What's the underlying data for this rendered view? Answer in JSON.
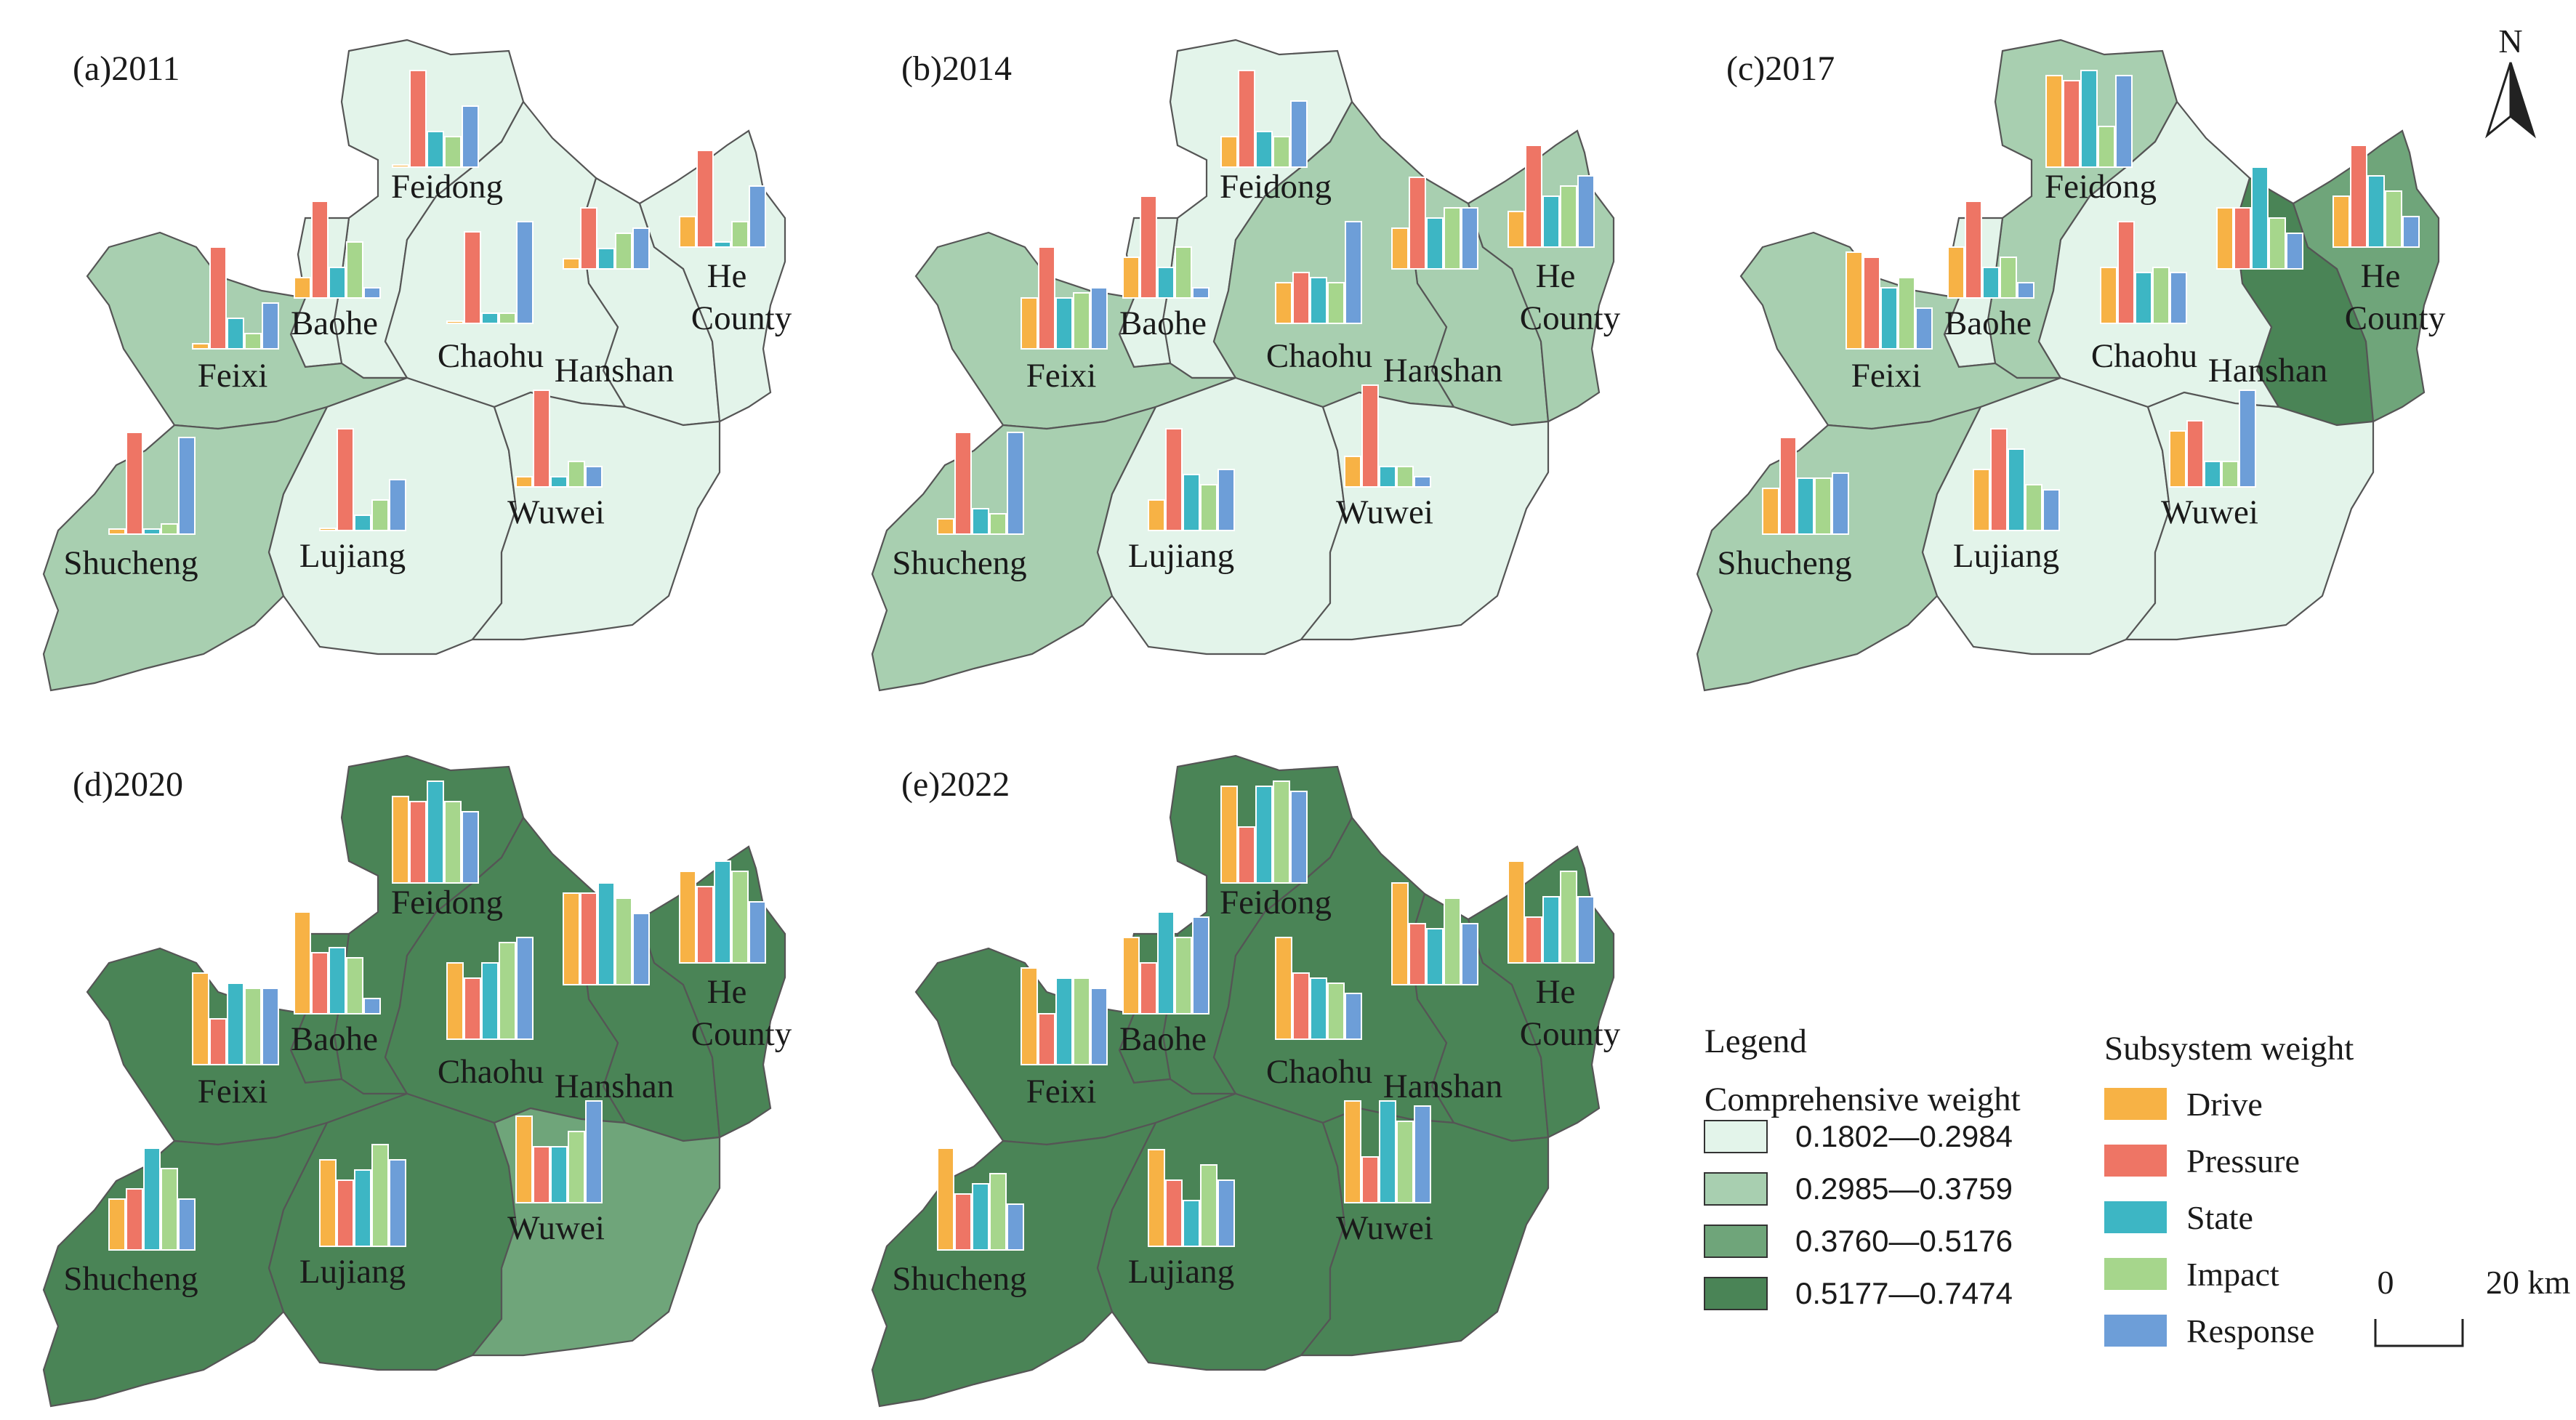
{
  "colors": {
    "classes": [
      "#e3f4ea",
      "#a8cfb0",
      "#6fa57a",
      "#4a8456"
    ],
    "subsystems": [
      "#f7b245",
      "#ee7565",
      "#3db6c4",
      "#a6d68c",
      "#6d9ed8"
    ],
    "border": "#555555"
  },
  "legend": {
    "title": "Legend",
    "comp_title": "Comprehensive weight",
    "classes": [
      "0.1802—0.2984",
      "0.2985—0.3759",
      "0.3760—0.5176",
      "0.5177—0.7474"
    ],
    "sub_title": "Subsystem weight",
    "subsystems": [
      "Drive",
      "Pressure",
      "State",
      "Impact",
      "Response"
    ]
  },
  "north": "N",
  "scale": {
    "zero": "0",
    "distance": "20 km"
  },
  "panels": [
    {
      "title": "(a)2011",
      "counties": [
        {
          "name": "Feidong",
          "cls": 0,
          "bars": [
            0,
            0.95,
            0.35,
            0.3,
            0.6
          ]
        },
        {
          "name": "Baohe",
          "cls": 0,
          "bars": [
            0.2,
            0.95,
            0.3,
            0.55,
            0.1
          ]
        },
        {
          "name": "Hanshan",
          "cls": 0,
          "bars": [
            0.1,
            0.6,
            0.2,
            0.35,
            0.4
          ]
        },
        {
          "name": "He County",
          "cls": 0,
          "bars": [
            0.3,
            0.95,
            0.05,
            0.25,
            0.6
          ]
        },
        {
          "name": "Feixi",
          "cls": 1,
          "bars": [
            0.05,
            1.0,
            0.3,
            0.15,
            0.45
          ]
        },
        {
          "name": "Chaohu",
          "cls": 0,
          "bars": [
            0,
            0.9,
            0.1,
            0.1,
            1.0
          ]
        },
        {
          "name": "Shucheng",
          "cls": 1,
          "bars": [
            0.05,
            1.0,
            0.05,
            0.1,
            0.95
          ]
        },
        {
          "name": "Lujiang",
          "cls": 0,
          "bars": [
            0,
            1.0,
            0.15,
            0.3,
            0.5
          ]
        },
        {
          "name": "Wuwei",
          "cls": 0,
          "bars": [
            0.1,
            0.95,
            0.1,
            0.25,
            0.2
          ]
        }
      ]
    },
    {
      "title": "(b)2014",
      "counties": [
        {
          "name": "Feidong",
          "cls": 0,
          "bars": [
            0.3,
            0.95,
            0.35,
            0.3,
            0.65
          ]
        },
        {
          "name": "Baohe",
          "cls": 0,
          "bars": [
            0.4,
            1.0,
            0.3,
            0.5,
            0.1
          ]
        },
        {
          "name": "Hanshan",
          "cls": 1,
          "bars": [
            0.4,
            0.9,
            0.5,
            0.6,
            0.6
          ]
        },
        {
          "name": "He County",
          "cls": 1,
          "bars": [
            0.35,
            1.0,
            0.5,
            0.6,
            0.7
          ]
        },
        {
          "name": "Feixi",
          "cls": 1,
          "bars": [
            0.5,
            1.0,
            0.5,
            0.55,
            0.6
          ]
        },
        {
          "name": "Chaohu",
          "cls": 1,
          "bars": [
            0.4,
            0.5,
            0.45,
            0.4,
            1.0
          ]
        },
        {
          "name": "Shucheng",
          "cls": 1,
          "bars": [
            0.15,
            1.0,
            0.25,
            0.2,
            1.0
          ]
        },
        {
          "name": "Lujiang",
          "cls": 0,
          "bars": [
            0.3,
            1.0,
            0.55,
            0.45,
            0.6
          ]
        },
        {
          "name": "Wuwei",
          "cls": 0,
          "bars": [
            0.3,
            1.0,
            0.2,
            0.2,
            0.1
          ]
        }
      ]
    },
    {
      "title": "(c)2017",
      "counties": [
        {
          "name": "Feidong",
          "cls": 1,
          "bars": [
            0.9,
            0.85,
            0.95,
            0.4,
            0.9
          ]
        },
        {
          "name": "Baohe",
          "cls": 0,
          "bars": [
            0.5,
            0.95,
            0.3,
            0.4,
            0.15
          ]
        },
        {
          "name": "Hanshan",
          "cls": 3,
          "bars": [
            0.6,
            0.6,
            1.0,
            0.5,
            0.35
          ]
        },
        {
          "name": "He County",
          "cls": 2,
          "bars": [
            0.5,
            1.0,
            0.7,
            0.55,
            0.3
          ]
        },
        {
          "name": "Feixi",
          "cls": 1,
          "bars": [
            0.95,
            0.9,
            0.6,
            0.7,
            0.4
          ]
        },
        {
          "name": "Chaohu",
          "cls": 0,
          "bars": [
            0.55,
            1.0,
            0.5,
            0.55,
            0.5
          ]
        },
        {
          "name": "Shucheng",
          "cls": 1,
          "bars": [
            0.45,
            0.95,
            0.55,
            0.55,
            0.6
          ]
        },
        {
          "name": "Lujiang",
          "cls": 0,
          "bars": [
            0.6,
            1.0,
            0.8,
            0.45,
            0.4
          ]
        },
        {
          "name": "Wuwei",
          "cls": 0,
          "bars": [
            0.55,
            0.65,
            0.25,
            0.25,
            0.95
          ]
        }
      ]
    },
    {
      "title": "(d)2020",
      "counties": [
        {
          "name": "Feidong",
          "cls": 3,
          "bars": [
            0.85,
            0.8,
            1.0,
            0.8,
            0.7
          ]
        },
        {
          "name": "Baohe",
          "cls": 3,
          "bars": [
            1.0,
            0.6,
            0.65,
            0.55,
            0.15
          ]
        },
        {
          "name": "Hanshan",
          "cls": 3,
          "bars": [
            0.9,
            0.9,
            1.0,
            0.85,
            0.7
          ]
        },
        {
          "name": "He County",
          "cls": 3,
          "bars": [
            0.9,
            0.75,
            1.0,
            0.9,
            0.6
          ]
        },
        {
          "name": "Feixi",
          "cls": 3,
          "bars": [
            0.9,
            0.45,
            0.8,
            0.75,
            0.75
          ]
        },
        {
          "name": "Chaohu",
          "cls": 3,
          "bars": [
            0.75,
            0.6,
            0.75,
            0.95,
            1.0
          ]
        },
        {
          "name": "Shucheng",
          "cls": 3,
          "bars": [
            0.5,
            0.6,
            1.0,
            0.8,
            0.5
          ]
        },
        {
          "name": "Lujiang",
          "cls": 3,
          "bars": [
            0.85,
            0.65,
            0.75,
            1.0,
            0.85
          ]
        },
        {
          "name": "Wuwei",
          "cls": 2,
          "bars": [
            0.85,
            0.55,
            0.55,
            0.7,
            1.0
          ]
        }
      ]
    },
    {
      "title": "(e)2022",
      "counties": [
        {
          "name": "Feidong",
          "cls": 3,
          "bars": [
            0.95,
            0.55,
            0.95,
            1.0,
            0.9
          ]
        },
        {
          "name": "Baohe",
          "cls": 3,
          "bars": [
            0.75,
            0.5,
            1.0,
            0.75,
            0.95
          ]
        },
        {
          "name": "Hanshan",
          "cls": 3,
          "bars": [
            1.0,
            0.6,
            0.55,
            0.85,
            0.6
          ]
        },
        {
          "name": "He County",
          "cls": 3,
          "bars": [
            1.0,
            0.45,
            0.65,
            0.9,
            0.65
          ]
        },
        {
          "name": "Feixi",
          "cls": 3,
          "bars": [
            0.95,
            0.5,
            0.85,
            0.85,
            0.75
          ]
        },
        {
          "name": "Chaohu",
          "cls": 3,
          "bars": [
            1.0,
            0.65,
            0.6,
            0.55,
            0.45
          ]
        },
        {
          "name": "Shucheng",
          "cls": 3,
          "bars": [
            1.0,
            0.55,
            0.65,
            0.75,
            0.45
          ]
        },
        {
          "name": "Lujiang",
          "cls": 3,
          "bars": [
            0.95,
            0.65,
            0.45,
            0.8,
            0.65
          ]
        },
        {
          "name": "Wuwei",
          "cls": 3,
          "bars": [
            1.0,
            0.45,
            1.0,
            0.8,
            0.95
          ]
        }
      ]
    }
  ]
}
